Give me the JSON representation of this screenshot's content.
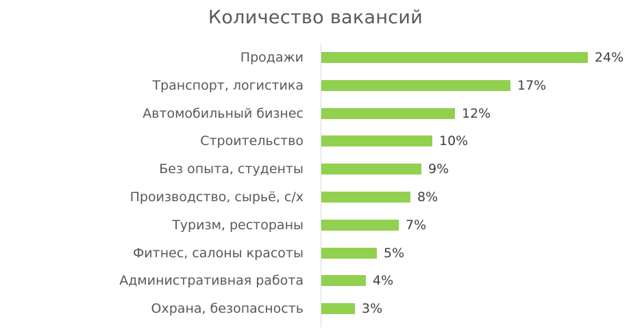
{
  "chart_data": {
    "type": "bar",
    "orientation": "horizontal",
    "title": "Количество вакансий",
    "xlabel": "",
    "ylabel": "",
    "categories": [
      "Продажи",
      "Транспорт, логистика",
      "Автомобильный бизнес",
      "Строительство",
      "Без опыта, студенты",
      "Производство, сырьё, с/х",
      "Туризм, рестораны",
      "Фитнес, салоны красоты",
      "Административная работа",
      "Охрана, безопасность"
    ],
    "values": [
      24,
      17,
      12,
      10,
      9,
      8,
      7,
      5,
      4,
      3
    ],
    "value_labels": [
      "24%",
      "17%",
      "12%",
      "10%",
      "9%",
      "8%",
      "7%",
      "5%",
      "4%",
      "3%"
    ],
    "unit": "%",
    "xlim": [
      0,
      24
    ],
    "grid": false,
    "legend": null,
    "bar_color": "#92d050"
  },
  "colors": {
    "bar": "#92d050",
    "text": "#595959",
    "axis": "#d9d9d9"
  }
}
